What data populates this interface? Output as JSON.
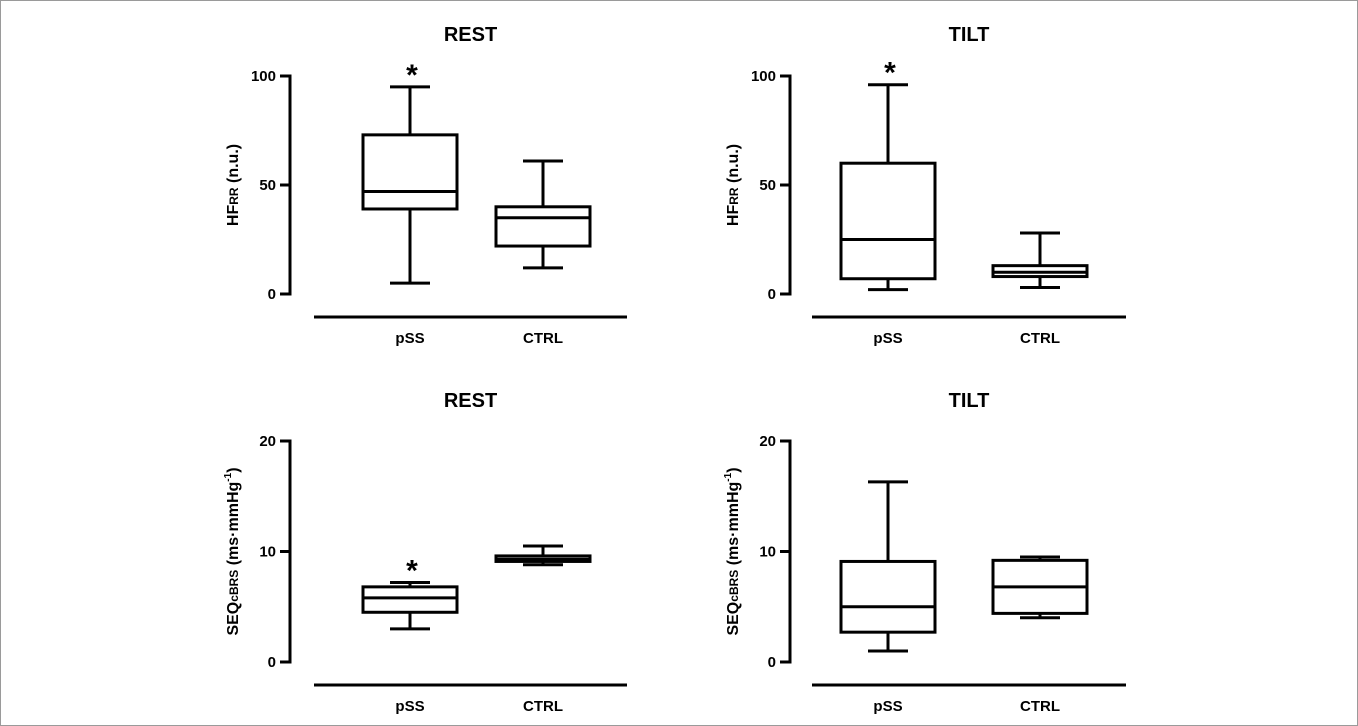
{
  "chart_data": [
    {
      "type": "box",
      "title": "REST",
      "ylabel": {
        "main": "HF",
        "sub": "RR",
        "rest": " (n.u.)",
        "sup": ""
      },
      "ylim": [
        0,
        100
      ],
      "yticks": [
        0,
        50,
        100
      ],
      "categories": [
        "pSS",
        "CTRL"
      ],
      "boxes": [
        {
          "category": "pSS",
          "min": 5,
          "q1": 39,
          "median": 47,
          "q3": 73,
          "max": 95,
          "star": "*"
        },
        {
          "category": "CTRL",
          "min": 12,
          "q1": 22,
          "median": 35,
          "q3": 40,
          "max": 61,
          "star": ""
        }
      ]
    },
    {
      "type": "box",
      "title": "TILT",
      "ylabel": {
        "main": "HF",
        "sub": "RR",
        "rest": " (n.u.)",
        "sup": ""
      },
      "ylim": [
        0,
        100
      ],
      "yticks": [
        0,
        50,
        100
      ],
      "categories": [
        "pSS",
        "CTRL"
      ],
      "boxes": [
        {
          "category": "pSS",
          "min": 2,
          "q1": 7,
          "median": 25,
          "q3": 60,
          "max": 96,
          "star": "*"
        },
        {
          "category": "CTRL",
          "min": 3,
          "q1": 8,
          "median": 10,
          "q3": 13,
          "max": 28,
          "star": ""
        }
      ]
    },
    {
      "type": "box",
      "title": "REST",
      "ylabel": {
        "main": "SEQ",
        "sub": "cBRS",
        "rest": " (ms·mmHg",
        "sup": "-1",
        "end": ")"
      },
      "ylim": [
        0,
        20
      ],
      "yticks": [
        0,
        10,
        20
      ],
      "categories": [
        "pSS",
        "CTRL"
      ],
      "boxes": [
        {
          "category": "pSS",
          "min": 3.0,
          "q1": 4.5,
          "median": 5.8,
          "q3": 6.8,
          "max": 7.2,
          "star": "*"
        },
        {
          "category": "CTRL",
          "min": 8.8,
          "q1": 9.1,
          "median": 9.3,
          "q3": 9.6,
          "max": 10.5,
          "star": ""
        }
      ]
    },
    {
      "type": "box",
      "title": "TILT",
      "ylabel": {
        "main": "SEQ",
        "sub": "cBRS",
        "rest": " (ms·mmHg",
        "sup": "-1",
        "end": ")"
      },
      "ylim": [
        0,
        20
      ],
      "yticks": [
        0,
        10,
        20
      ],
      "categories": [
        "pSS",
        "CTRL"
      ],
      "boxes": [
        {
          "category": "pSS",
          "min": 1.0,
          "q1": 2.7,
          "median": 5.0,
          "q3": 9.1,
          "max": 16.3,
          "star": ""
        },
        {
          "category": "CTRL",
          "min": 4.0,
          "q1": 4.4,
          "median": 6.8,
          "q3": 9.2,
          "max": 9.5,
          "star": ""
        }
      ]
    }
  ]
}
